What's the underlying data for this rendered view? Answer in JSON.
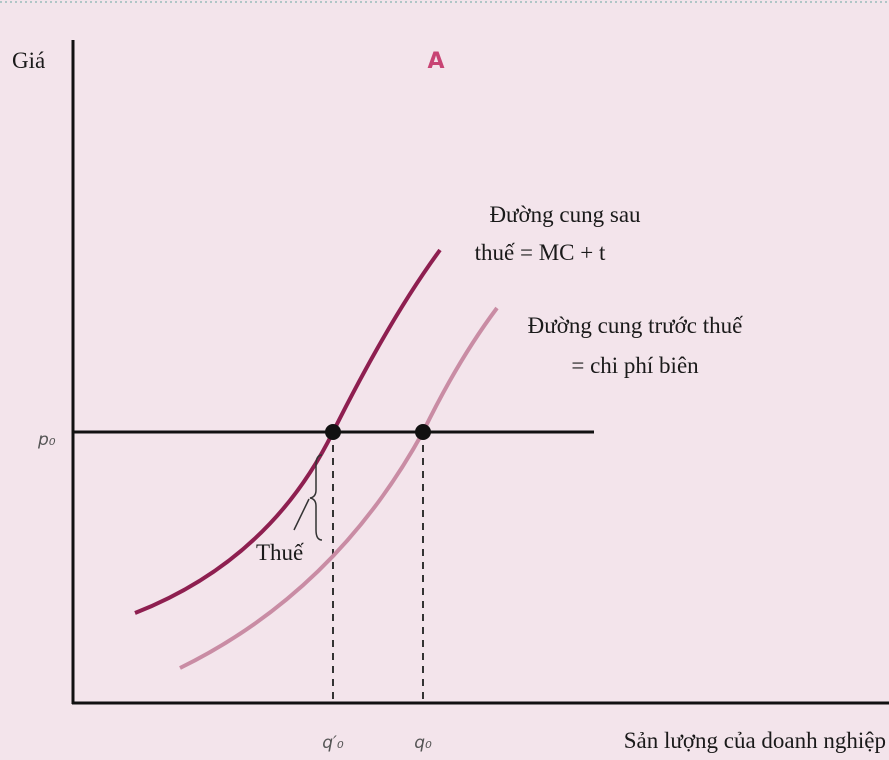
{
  "diagram": {
    "title": "A",
    "y_axis_label": "Giá",
    "x_axis_label": "Sản lượng của doanh nghiệp",
    "price_label": "p₀",
    "quantity_labels": [
      "q′₀",
      "q₀"
    ],
    "after_tax_curve_label": [
      "Đường cung sau",
      "thuế = MC + t"
    ],
    "before_tax_curve_label": [
      "Đường cung trước thuế",
      "= chi phí biên"
    ],
    "tax_label": "Thuế"
  }
}
